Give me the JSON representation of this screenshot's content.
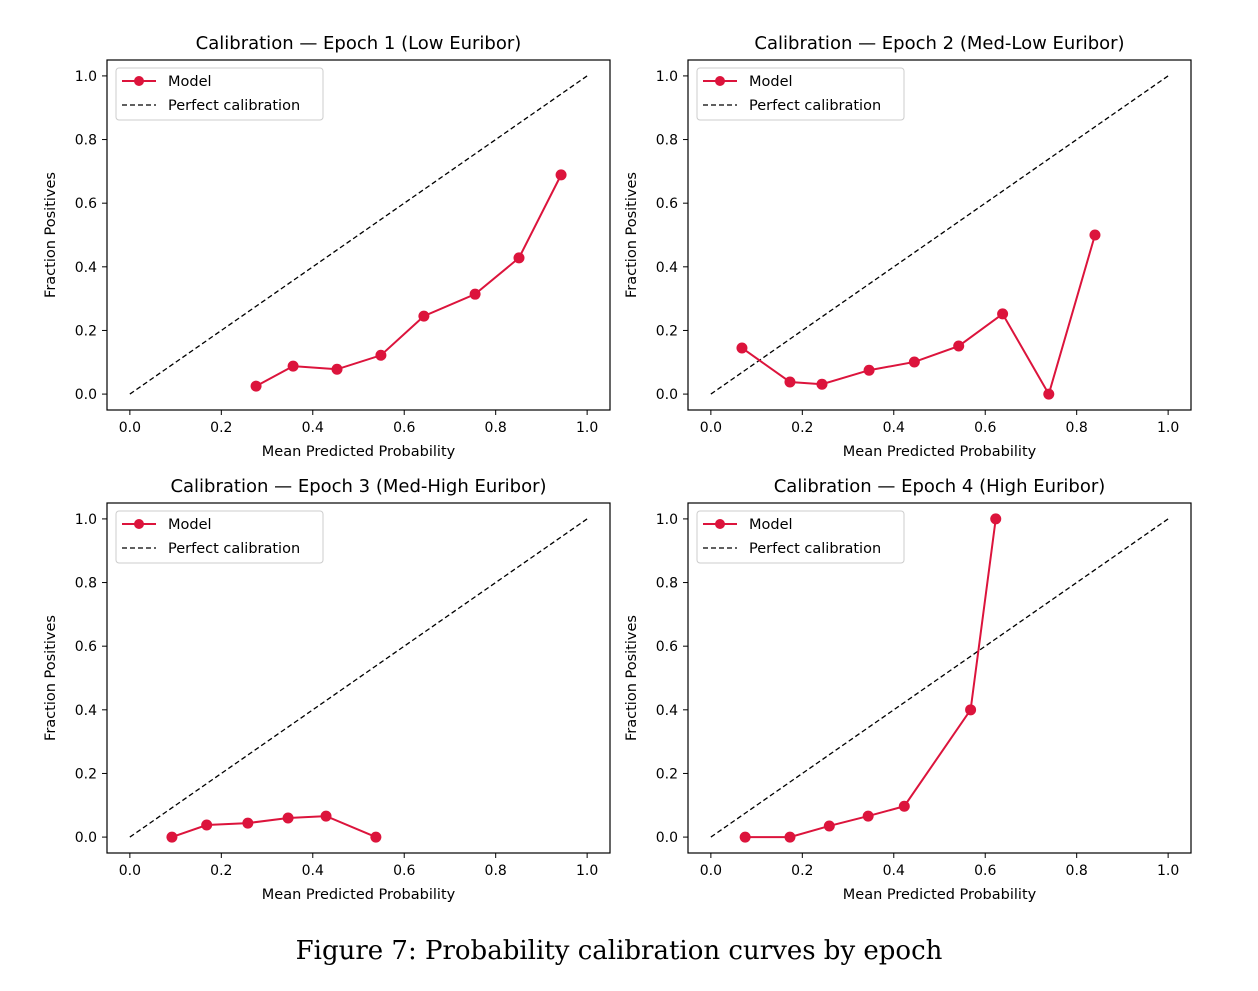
{
  "caption": "Figure 7: Probability calibration curves by epoch",
  "colors": {
    "model": "#dc143c",
    "perfect": "#000000",
    "legend_border": "#cccccc"
  },
  "chart_data": [
    {
      "type": "line",
      "title": "Calibration — Epoch 1 (Low Euribor)",
      "xlabel": "Mean Predicted Probability",
      "ylabel": "Fraction Positives",
      "xlim": [
        -0.05,
        1.05
      ],
      "ylim": [
        -0.05,
        1.05
      ],
      "xticks": [
        "0.0",
        "0.2",
        "0.4",
        "0.6",
        "0.8",
        "1.0"
      ],
      "yticks": [
        "0.0",
        "0.2",
        "0.4",
        "0.6",
        "0.8",
        "1.0"
      ],
      "grid": false,
      "legend_position": "upper-left",
      "legend": [
        "Model",
        "Perfect calibration"
      ],
      "series": [
        {
          "name": "Model",
          "x": [
            0.276,
            0.357,
            0.453,
            0.549,
            0.643,
            0.755,
            0.851,
            0.943
          ],
          "y": [
            0.025,
            0.088,
            0.078,
            0.122,
            0.245,
            0.314,
            0.428,
            0.689
          ]
        },
        {
          "name": "Perfect calibration",
          "x": [
            0,
            1
          ],
          "y": [
            0,
            1
          ]
        }
      ]
    },
    {
      "type": "line",
      "title": "Calibration — Epoch 2 (Med-Low Euribor)",
      "xlabel": "Mean Predicted Probability",
      "ylabel": "Fraction Positives",
      "xlim": [
        -0.05,
        1.05
      ],
      "ylim": [
        -0.05,
        1.05
      ],
      "xticks": [
        "0.0",
        "0.2",
        "0.4",
        "0.6",
        "0.8",
        "1.0"
      ],
      "yticks": [
        "0.0",
        "0.2",
        "0.4",
        "0.6",
        "0.8",
        "1.0"
      ],
      "grid": false,
      "legend_position": "upper-left",
      "legend": [
        "Model",
        "Perfect calibration"
      ],
      "series": [
        {
          "name": "Model",
          "x": [
            0.068,
            0.173,
            0.243,
            0.346,
            0.445,
            0.542,
            0.638,
            0.739,
            0.84
          ],
          "y": [
            0.145,
            0.038,
            0.031,
            0.075,
            0.101,
            0.151,
            0.252,
            0.0,
            0.5
          ]
        },
        {
          "name": "Perfect calibration",
          "x": [
            0,
            1
          ],
          "y": [
            0,
            1
          ]
        }
      ]
    },
    {
      "type": "line",
      "title": "Calibration — Epoch 3 (Med-High Euribor)",
      "xlabel": "Mean Predicted Probability",
      "ylabel": "Fraction Positives",
      "xlim": [
        -0.05,
        1.05
      ],
      "ylim": [
        -0.05,
        1.05
      ],
      "xticks": [
        "0.0",
        "0.2",
        "0.4",
        "0.6",
        "0.8",
        "1.0"
      ],
      "yticks": [
        "0.0",
        "0.2",
        "0.4",
        "0.6",
        "0.8",
        "1.0"
      ],
      "grid": false,
      "legend_position": "upper-left",
      "legend": [
        "Model",
        "Perfect calibration"
      ],
      "series": [
        {
          "name": "Model",
          "x": [
            0.092,
            0.168,
            0.258,
            0.346,
            0.429,
            0.538
          ],
          "y": [
            0.0,
            0.038,
            0.044,
            0.06,
            0.066,
            0.0
          ]
        },
        {
          "name": "Perfect calibration",
          "x": [
            0,
            1
          ],
          "y": [
            0,
            1
          ]
        }
      ]
    },
    {
      "type": "line",
      "title": "Calibration — Epoch 4 (High Euribor)",
      "xlabel": "Mean Predicted Probability",
      "ylabel": "Fraction Positives",
      "xlim": [
        -0.05,
        1.05
      ],
      "ylim": [
        -0.05,
        1.05
      ],
      "xticks": [
        "0.0",
        "0.2",
        "0.4",
        "0.6",
        "0.8",
        "1.0"
      ],
      "yticks": [
        "0.0",
        "0.2",
        "0.4",
        "0.6",
        "0.8",
        "1.0"
      ],
      "grid": false,
      "legend_position": "upper-left",
      "legend": [
        "Model",
        "Perfect calibration"
      ],
      "series": [
        {
          "name": "Model",
          "x": [
            0.075,
            0.173,
            0.259,
            0.344,
            0.423,
            0.568,
            0.623
          ],
          "y": [
            0.0,
            0.0,
            0.035,
            0.066,
            0.097,
            0.4,
            1.0
          ]
        },
        {
          "name": "Perfect calibration",
          "x": [
            0,
            1
          ],
          "y": [
            0,
            1
          ]
        }
      ]
    }
  ]
}
